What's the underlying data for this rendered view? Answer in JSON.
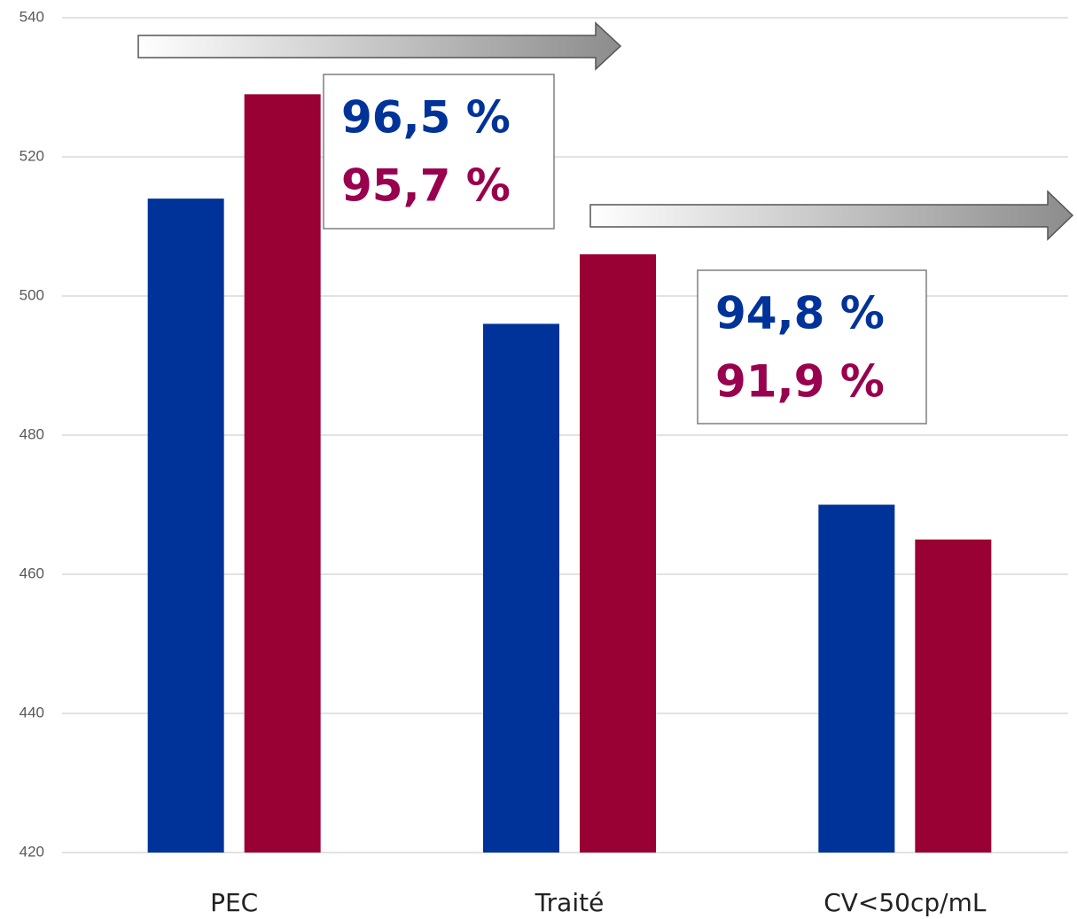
{
  "chart_data": {
    "type": "bar",
    "categories": [
      "PEC",
      "Traité",
      "CV<50cp/mL"
    ],
    "series": [
      {
        "color": "#003399",
        "values": [
          514,
          496,
          470
        ]
      },
      {
        "color": "#990033",
        "values": [
          529,
          506,
          465
        ]
      }
    ],
    "ylim": [
      420,
      540
    ],
    "yticks": [
      420,
      440,
      460,
      480,
      500,
      520,
      540
    ],
    "grid": true,
    "annotations": [
      {
        "texts": [
          "96,5 %",
          "95,7 %"
        ],
        "colors": [
          "#003399",
          "#99004d"
        ]
      },
      {
        "texts": [
          "94,8 %",
          "91,9 %"
        ],
        "colors": [
          "#003399",
          "#99004d"
        ]
      }
    ]
  }
}
